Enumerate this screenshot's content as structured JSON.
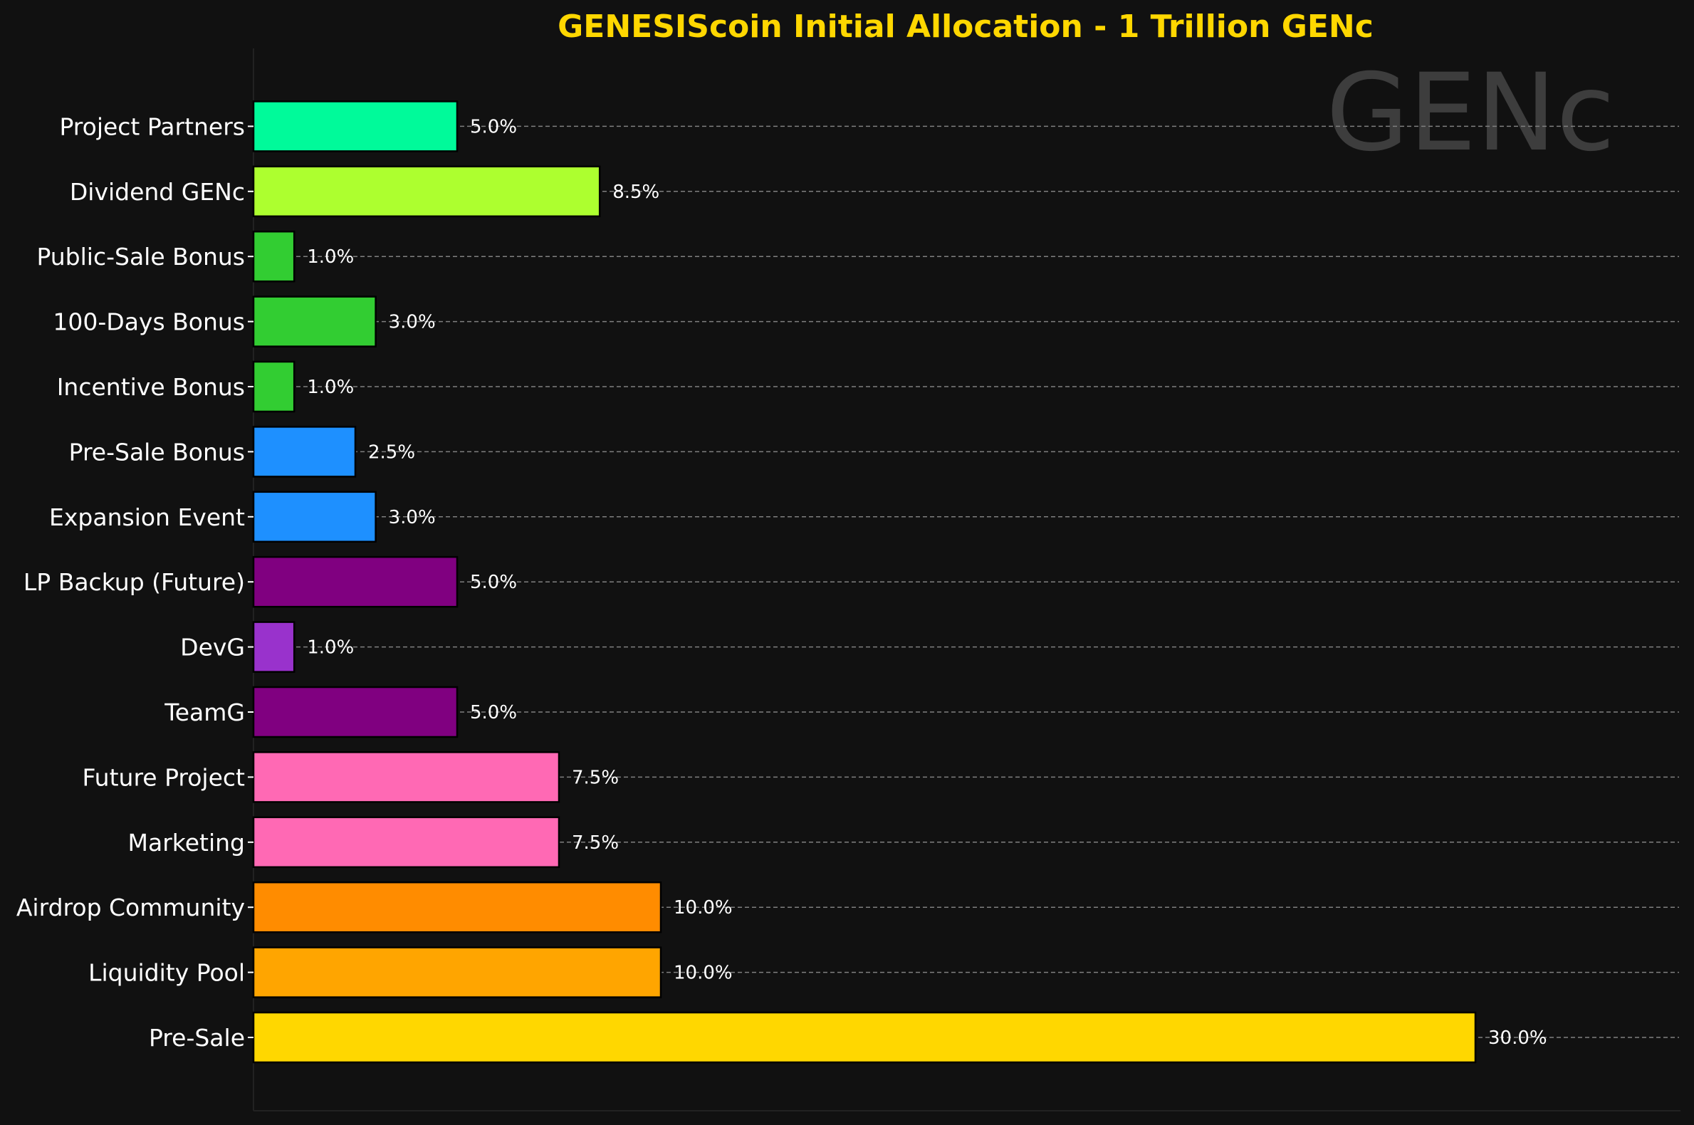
{
  "chart_data": {
    "type": "bar",
    "orientation": "horizontal",
    "title": "GENESIScoin Initial Allocation - 1 Trillion GENc",
    "watermark": "GENc",
    "xlabel": "",
    "ylabel": "",
    "xlim": [
      0,
      35
    ],
    "grid": "horizontal dashed",
    "value_suffix": "%",
    "categories": [
      "Pre-Sale",
      "Liquidity Pool",
      "Airdrop Community",
      "Marketing",
      "Future Project",
      "TeamG",
      "DevG",
      "LP Backup (Future)",
      "Expansion Event",
      "Pre-Sale Bonus",
      "Incentive Bonus",
      "100-Days Bonus",
      "Public-Sale Bonus",
      "Dividend GENc",
      "Project Partners"
    ],
    "values": [
      30.0,
      10.0,
      10.0,
      7.5,
      7.5,
      5.0,
      1.0,
      5.0,
      3.0,
      2.5,
      1.0,
      3.0,
      1.0,
      8.5,
      5.0
    ],
    "colors": [
      "#FFD700",
      "#FFA500",
      "#FF8C00",
      "#FF69B4",
      "#FF69B4",
      "#800080",
      "#9932CC",
      "#800080",
      "#1E90FF",
      "#1E90FF",
      "#32CD32",
      "#32CD32",
      "#32CD32",
      "#ADFF2F",
      "#00FA9A"
    ]
  },
  "style": {
    "background": "#111111",
    "title_color": "#FFD700",
    "text_color": "#FFFFFF",
    "grid_color": "#808080",
    "watermark_color": "#3d3d3d"
  }
}
